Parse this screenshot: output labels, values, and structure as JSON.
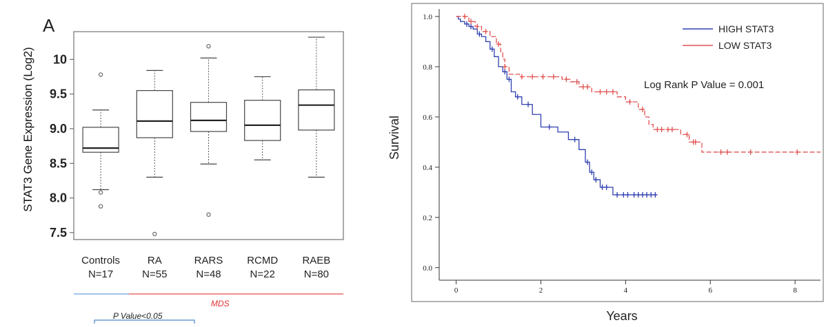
{
  "chart_data": [
    {
      "type": "box",
      "panel_label": "A",
      "ylabel": "STAT3 Gene Expression (Log2)",
      "ylim": [
        7.4,
        10.4
      ],
      "yticks": [
        7.5,
        8.0,
        8.5,
        9.0,
        9.5,
        10
      ],
      "ytick_labels": [
        "7.5",
        "8.0",
        "8.5",
        "9.0",
        "9.5",
        "10"
      ],
      "categories": [
        "Controls",
        "RA",
        "RARS",
        "RCMD",
        "RAEB"
      ],
      "sample_sizes": [
        "N=17",
        "N=55",
        "N=48",
        "N=22",
        "N=80"
      ],
      "boxes": [
        {
          "name": "Controls",
          "whisker_low": 8.12,
          "q1": 8.66,
          "median": 8.72,
          "q3": 9.02,
          "whisker_high": 9.27,
          "outliers": [
            9.78,
            8.08,
            7.88
          ]
        },
        {
          "name": "RA",
          "whisker_low": 8.3,
          "q1": 8.87,
          "median": 9.11,
          "q3": 9.55,
          "whisker_high": 9.84,
          "outliers": [
            7.48
          ]
        },
        {
          "name": "RARS",
          "whisker_low": 8.49,
          "q1": 8.96,
          "median": 9.12,
          "q3": 9.38,
          "whisker_high": 10.02,
          "outliers": [
            10.19,
            7.76
          ]
        },
        {
          "name": "RCMD",
          "whisker_low": 8.55,
          "q1": 8.83,
          "median": 9.05,
          "q3": 9.41,
          "whisker_high": 9.75,
          "outliers": []
        },
        {
          "name": "RAEB",
          "whisker_low": 8.3,
          "q1": 8.98,
          "median": 9.34,
          "q3": 9.56,
          "whisker_high": 10.32,
          "outliers": []
        }
      ],
      "annotations": {
        "mds": "MDS",
        "pvalue": "P Value<0.05",
        "controls_line_color": "#6a9fe0",
        "mds_line_color": "#e64a4a",
        "bracket_color": "#4a86c8",
        "mds_text_color": "#e03030"
      },
      "grid": false
    },
    {
      "type": "line",
      "subtype": "kaplan-meier",
      "xlabel": "Years",
      "ylabel": "Survival",
      "xlim": [
        -0.4,
        8.6
      ],
      "ylim": [
        -0.05,
        1.03
      ],
      "xticks": [
        0,
        2,
        4,
        6,
        8
      ],
      "yticks": [
        0.0,
        0.2,
        0.4,
        0.6,
        0.8,
        1.0
      ],
      "ytick_labels": [
        "0.0",
        "0.2",
        "0.4",
        "0.6",
        "0.8",
        "1.0"
      ],
      "legend_position": "top-right",
      "annotation": "Log Rank P Value = 0.001",
      "grid": false,
      "series": [
        {
          "name": "HIGH STAT3",
          "color": "#2f3fb0",
          "line_style": "solid",
          "points": [
            [
              0,
              1.0
            ],
            [
              0.05,
              0.99
            ],
            [
              0.1,
              0.98
            ],
            [
              0.2,
              0.97
            ],
            [
              0.3,
              0.96
            ],
            [
              0.4,
              0.95
            ],
            [
              0.5,
              0.93
            ],
            [
              0.6,
              0.92
            ],
            [
              0.7,
              0.9
            ],
            [
              0.8,
              0.87
            ],
            [
              0.9,
              0.84
            ],
            [
              1.0,
              0.8
            ],
            [
              1.1,
              0.78
            ],
            [
              1.2,
              0.75
            ],
            [
              1.3,
              0.7
            ],
            [
              1.4,
              0.68
            ],
            [
              1.55,
              0.65
            ],
            [
              1.8,
              0.61
            ],
            [
              2.0,
              0.56
            ],
            [
              2.4,
              0.54
            ],
            [
              2.65,
              0.51
            ],
            [
              2.9,
              0.47
            ],
            [
              3.05,
              0.42
            ],
            [
              3.15,
              0.38
            ],
            [
              3.25,
              0.35
            ],
            [
              3.4,
              0.32
            ],
            [
              3.7,
              0.29
            ],
            [
              4.75,
              0.29
            ]
          ],
          "censor_times": [
            0.25,
            0.35,
            0.55,
            0.85,
            1.15,
            1.25,
            1.45,
            1.7,
            2.2,
            2.8,
            3.1,
            3.2,
            3.3,
            3.45,
            3.55,
            3.8,
            3.95,
            4.05,
            4.2,
            4.3,
            4.4,
            4.5,
            4.6,
            4.7
          ]
        },
        {
          "name": "LOW STAT3",
          "color": "#e05050",
          "line_style": "dashed",
          "points": [
            [
              0,
              1.0
            ],
            [
              0.3,
              0.98
            ],
            [
              0.45,
              0.96
            ],
            [
              0.6,
              0.94
            ],
            [
              0.8,
              0.92
            ],
            [
              0.95,
              0.89
            ],
            [
              1.05,
              0.86
            ],
            [
              1.1,
              0.83
            ],
            [
              1.15,
              0.8
            ],
            [
              1.25,
              0.77
            ],
            [
              1.5,
              0.76
            ],
            [
              2.5,
              0.75
            ],
            [
              2.7,
              0.74
            ],
            [
              2.9,
              0.72
            ],
            [
              3.2,
              0.7
            ],
            [
              3.8,
              0.68
            ],
            [
              4.0,
              0.66
            ],
            [
              4.3,
              0.63
            ],
            [
              4.45,
              0.6
            ],
            [
              4.55,
              0.57
            ],
            [
              4.65,
              0.55
            ],
            [
              5.3,
              0.53
            ],
            [
              5.5,
              0.5
            ],
            [
              5.8,
              0.46
            ],
            [
              8.6,
              0.46
            ]
          ],
          "censor_times": [
            0.2,
            0.35,
            0.5,
            0.7,
            1.0,
            1.15,
            1.55,
            1.8,
            2.05,
            2.3,
            2.6,
            2.85,
            3.0,
            3.1,
            3.4,
            3.55,
            3.7,
            4.1,
            4.4,
            4.75,
            4.85,
            5.0,
            5.1,
            5.45,
            5.6,
            5.65,
            6.25,
            6.4,
            6.95,
            8.05
          ]
        }
      ]
    }
  ]
}
